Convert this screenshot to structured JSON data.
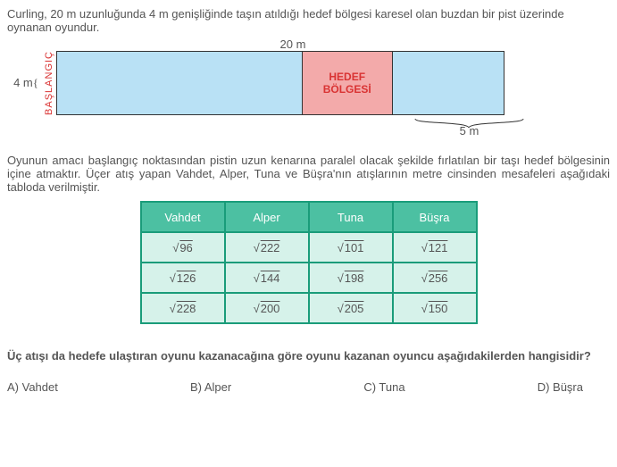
{
  "intro": "Curling, 20 m uzunluğunda 4 m genişliğinde taşın atıldığı hedef bölgesi karesel olan buzdan bir pist üzerinde oynanan oyundur.",
  "diagram": {
    "top_label": "20 m",
    "left_label": "4 m",
    "vert_label": "BAŞLANGIÇ",
    "target_label_l1": "HEDEF",
    "target_label_l2": "BÖLGESİ",
    "bottom_label": "5 m",
    "colors": {
      "ice": "#b9e1f5",
      "target": "#f3aaaa",
      "border": "#333333",
      "accent": "#d93333"
    },
    "widths_m": {
      "total": 20,
      "pre": 11,
      "target": 4,
      "post": 5
    }
  },
  "para": "Oyunun amacı başlangıç noktasından pistin uzun kenarına paralel olacak şekilde fırlatılan bir taşı hedef bölgesinin içine atmaktır. Üçer atış yapan Vahdet, Alper, Tuna ve Büşra'nın atışlarının metre cinsinden mesafeleri aşağıdaki tabloda verilmiştir.",
  "table": {
    "headers": [
      "Vahdet",
      "Alper",
      "Tuna",
      "Büşra"
    ],
    "rows": [
      [
        "96",
        "222",
        "101",
        "121"
      ],
      [
        "126",
        "144",
        "198",
        "256"
      ],
      [
        "228",
        "200",
        "205",
        "150"
      ]
    ],
    "colors": {
      "header_bg": "#4cc0a2",
      "cell_bg": "#d6f2ea",
      "border": "#1a9c7a"
    }
  },
  "question": "Üç atışı da hedefe ulaştıran oyunu kazanacağına göre oyunu kazanan oyuncu aşağıdakilerden hangisidir?",
  "options": {
    "a": "A) Vahdet",
    "b": "B) Alper",
    "c": "C) Tuna",
    "d": "D) Büşra"
  }
}
